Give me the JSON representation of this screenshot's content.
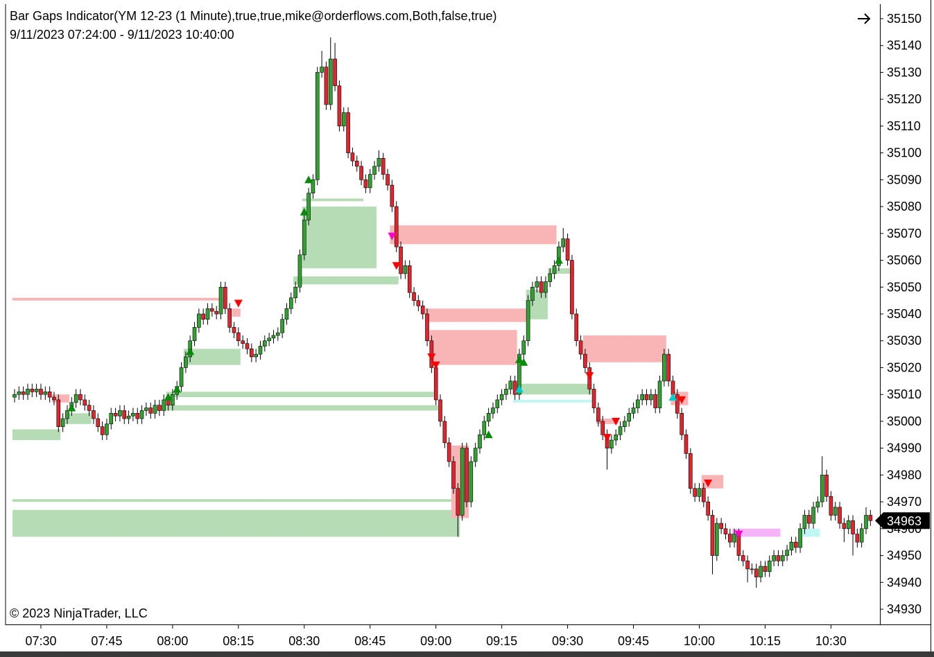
{
  "chart_data": {
    "type": "candlestick",
    "title": "Bar Gaps Indicator(YM 12-23 (1 Minute),true,true,mike@orderflows.com,Both,false,true)",
    "subtitle": "9/11/2023 07:24:00 - 9/11/2023 10:40:00",
    "copyright": "© 2023 NinjaTrader, LLC",
    "up_color": "#33a033",
    "down_color": "#e0252f",
    "ylim": [
      34925,
      35155
    ],
    "yticks": [
      34930,
      34940,
      34950,
      34960,
      34970,
      34980,
      34990,
      35000,
      35010,
      35020,
      35030,
      35040,
      35050,
      35060,
      35070,
      35080,
      35090,
      35100,
      35110,
      35120,
      35130,
      35140,
      35150
    ],
    "categories": [
      null,
      null,
      null,
      null,
      null,
      null,
      "07:30",
      null,
      null,
      null,
      null,
      null,
      null,
      null,
      null,
      null,
      null,
      null,
      null,
      null,
      null,
      "07:45",
      null,
      null,
      null,
      null,
      null,
      null,
      null,
      null,
      null,
      null,
      null,
      null,
      null,
      null,
      "08:00",
      null,
      null,
      null,
      null,
      null,
      null,
      null,
      null,
      null,
      null,
      null,
      null,
      null,
      null,
      "08:15",
      null,
      null,
      null,
      null,
      null,
      null,
      null,
      null,
      null,
      null,
      null,
      null,
      null,
      null,
      "08:30",
      null,
      null,
      null,
      null,
      null,
      null,
      null,
      null,
      null,
      null,
      null,
      null,
      null,
      null,
      "08:45",
      null,
      null,
      null,
      null,
      null,
      null,
      null,
      null,
      null,
      null,
      null,
      null,
      null,
      null,
      "09:00",
      null,
      null,
      null,
      null,
      null,
      null,
      null,
      null,
      null,
      null,
      null,
      null,
      null,
      null,
      "09:15",
      null,
      null,
      null,
      null,
      null,
      null,
      null,
      null,
      null,
      null,
      null,
      null,
      null,
      null,
      "09:30",
      null,
      null,
      null,
      null,
      null,
      null,
      null,
      null,
      null,
      null,
      null,
      null,
      null,
      null,
      "09:45",
      null,
      null,
      null,
      null,
      null,
      null,
      null,
      null,
      null,
      null,
      null,
      null,
      null,
      null,
      "10:00",
      null,
      null,
      null,
      null,
      null,
      null,
      null,
      null,
      null,
      null,
      null,
      null,
      null,
      null,
      "10:15",
      null,
      null,
      null,
      null,
      null,
      null,
      null,
      null,
      null,
      null,
      null,
      null,
      null,
      null,
      "10:30",
      null,
      null,
      null,
      null,
      null,
      null,
      null,
      null,
      null
    ],
    "open": [
      35009,
      35010,
      35011,
      35010,
      35012,
      35011,
      35012,
      35010,
      35011,
      35009,
      35008,
      34998,
      35001,
      35004,
      35007,
      35010,
      35008,
      35006,
      35004,
      35001,
      34998,
      34995,
      34999,
      35003,
      35002,
      35004,
      35001,
      35002,
      35003,
      35001,
      35004,
      35005,
      35003,
      35006,
      35004,
      35008,
      35006,
      35010,
      35013,
      35020,
      35024,
      35030,
      35035,
      35040,
      35038,
      35042,
      35041,
      35040,
      35050,
      35042,
      35035,
      35033,
      35030,
      35029,
      35027,
      35024,
      35025,
      35028,
      35030,
      35031,
      35032,
      35033,
      35038,
      35042,
      35046,
      35050,
      35062,
      35075,
      35085,
      35090,
      35130,
      35132,
      35118,
      35135,
      35125,
      35110,
      35115,
      35100,
      35097,
      35095,
      35090,
      35087,
      35092,
      35095,
      35098,
      35092,
      35088,
      35080,
      35065,
      35055,
      35058,
      35048,
      35045,
      35043,
      35040,
      35030,
      35020,
      35008,
      35000,
      34992,
      34985,
      34975,
      34965,
      34990,
      34970,
      34985,
      34990,
      34995,
      35000,
      35003,
      35005,
      35008,
      35010,
      35012,
      35015,
      35010,
      35025,
      35030,
      35045,
      35050,
      35052,
      35048,
      35052,
      35055,
      35058,
      35065,
      35068,
      35060,
      35040,
      35030,
      35025,
      35020,
      35012,
      35005,
      35000,
      34995,
      34990,
      34993,
      34995,
      34998,
      35000,
      35003,
      35005,
      35008,
      35010,
      35008,
      35010,
      35005,
      35015,
      35025,
      35015,
      35010,
      35003,
      34995,
      34988,
      34975,
      34972,
      34975,
      34970,
      34965,
      34950,
      34962,
      34960,
      34958,
      34955,
      34958,
      34950,
      34948,
      34945,
      34945,
      34942,
      34946,
      34944,
      34948,
      34950,
      34948,
      34950,
      34952,
      34955,
      34953,
      34960,
      34965,
      34962,
      34968,
      34970,
      34980,
      34972,
      34965,
      34968,
      34962,
      34960,
      34963,
      34958,
      34955,
      34960,
      34965
    ],
    "high": [
      35012,
      35013,
      35013,
      35014,
      35014,
      35014,
      35014,
      35013,
      35013,
      35011,
      35010,
      35003,
      35006,
      35009,
      35012,
      35012,
      35010,
      35008,
      35006,
      35003,
      35000,
      35001,
      35005,
      35005,
      35006,
      35006,
      35004,
      35005,
      35005,
      35006,
      35007,
      35007,
      35008,
      35008,
      35010,
      35010,
      35012,
      35015,
      35022,
      35026,
      35032,
      35037,
      35042,
      35042,
      35044,
      35044,
      35043,
      35052,
      35052,
      35044,
      35037,
      35035,
      35032,
      35031,
      35029,
      35027,
      35030,
      35032,
      35033,
      35034,
      35035,
      35040,
      35044,
      35048,
      35052,
      35064,
      35077,
      35087,
      35092,
      35132,
      35138,
      35134,
      35143,
      35141,
      35127,
      35117,
      35117,
      35102,
      35099,
      35097,
      35092,
      35094,
      35097,
      35101,
      35100,
      35094,
      35090,
      35082,
      35067,
      35060,
      35060,
      35050,
      35047,
      35045,
      35042,
      35032,
      35022,
      35010,
      35002,
      34994,
      34987,
      34977,
      34992,
      34992,
      34987,
      34992,
      34997,
      35002,
      35005,
      35007,
      35010,
      35012,
      35014,
      35017,
      35017,
      35027,
      35032,
      35047,
      35052,
      35054,
      35054,
      35054,
      35057,
      35060,
      35067,
      35072,
      35070,
      35062,
      35042,
      35032,
      35027,
      35022,
      35014,
      35007,
      35002,
      34997,
      34995,
      34997,
      35000,
      35002,
      35005,
      35007,
      35010,
      35012,
      35012,
      35012,
      35012,
      35017,
      35027,
      35027,
      35017,
      35012,
      35005,
      34997,
      34990,
      34977,
      34977,
      34977,
      34972,
      34967,
      34964,
      34964,
      34962,
      34960,
      34960,
      34960,
      34952,
      34950,
      34947,
      34947,
      34948,
      34948,
      34950,
      34952,
      34952,
      34952,
      34954,
      34957,
      34957,
      34962,
      34967,
      34967,
      34970,
      34972,
      34987,
      34982,
      34974,
      34970,
      34970,
      34964,
      34965,
      34965,
      34960,
      34962,
      34968,
      34967
    ],
    "low": [
      35007,
      35008,
      35008,
      35008,
      35009,
      35009,
      35008,
      35008,
      35007,
      35006,
      34996,
      34996,
      34999,
      35002,
      35005,
      35006,
      35004,
      35002,
      34999,
      34996,
      34993,
      34993,
      34997,
      35000,
      35000,
      34999,
      34999,
      35000,
      34999,
      34999,
      35002,
      35001,
      35001,
      35002,
      35002,
      35004,
      35004,
      35008,
      35011,
      35018,
      35022,
      35028,
      35033,
      35036,
      35036,
      35039,
      35038,
      35038,
      35040,
      35033,
      35031,
      35028,
      35027,
      35025,
      35022,
      35022,
      35023,
      35026,
      35028,
      35029,
      35030,
      35031,
      35036,
      35040,
      35044,
      35048,
      35060,
      35073,
      35083,
      35088,
      35128,
      35116,
      35116,
      35123,
      35108,
      35108,
      35098,
      35095,
      35093,
      35088,
      35085,
      35085,
      35090,
      35093,
      35090,
      35086,
      35078,
      35063,
      35053,
      35053,
      35046,
      35043,
      35041,
      35038,
      35028,
      35018,
      35006,
      34998,
      34990,
      34983,
      34973,
      34957,
      34963,
      34968,
      34968,
      34983,
      34988,
      34993,
      34998,
      35001,
      35003,
      35006,
      35008,
      35010,
      35008,
      35008,
      35023,
      35028,
      35043,
      35048,
      35046,
      35046,
      35050,
      35053,
      35056,
      35063,
      35058,
      35038,
      35028,
      35023,
      35018,
      35010,
      35003,
      34998,
      34993,
      34982,
      34988,
      34991,
      34993,
      34996,
      34998,
      35001,
      35003,
      35006,
      35006,
      35006,
      35003,
      35003,
      35013,
      35013,
      35008,
      35001,
      34993,
      34986,
      34973,
      34970,
      34970,
      34968,
      34963,
      34943,
      34948,
      34958,
      34956,
      34953,
      34953,
      34948,
      34946,
      34940,
      34943,
      34938,
      34940,
      34942,
      34942,
      34946,
      34946,
      34946,
      34948,
      34950,
      34951,
      34951,
      34958,
      34960,
      34960,
      34966,
      34968,
      34970,
      34963,
      34963,
      34960,
      34955,
      34958,
      34950,
      34953,
      34953,
      34958,
      34961
    ],
    "close": [
      35010,
      35011,
      35010,
      35012,
      35011,
      35012,
      35010,
      35011,
      35009,
      35008,
      34998,
      35001,
      35004,
      35007,
      35010,
      35008,
      35006,
      35004,
      35001,
      34998,
      34995,
      34999,
      35003,
      35002,
      35004,
      35001,
      35002,
      35003,
      35001,
      35004,
      35005,
      35003,
      35006,
      35004,
      35008,
      35006,
      35010,
      35013,
      35020,
      35024,
      35030,
      35035,
      35040,
      35038,
      35042,
      35041,
      35040,
      35050,
      35042,
      35035,
      35033,
      35030,
      35029,
      35027,
      35024,
      35025,
      35028,
      35030,
      35031,
      35032,
      35033,
      35038,
      35042,
      35046,
      35050,
      35062,
      35075,
      35085,
      35090,
      35130,
      35132,
      35118,
      35135,
      35125,
      35110,
      35115,
      35100,
      35097,
      35095,
      35090,
      35087,
      35092,
      35095,
      35098,
      35092,
      35088,
      35080,
      35065,
      35055,
      35058,
      35048,
      35045,
      35043,
      35040,
      35030,
      35020,
      35008,
      35000,
      34992,
      34985,
      34975,
      34965,
      34990,
      34970,
      34985,
      34990,
      34995,
      35000,
      35003,
      35005,
      35008,
      35010,
      35012,
      35015,
      35010,
      35025,
      35030,
      35045,
      35050,
      35052,
      35048,
      35052,
      35055,
      35058,
      35065,
      35068,
      35060,
      35040,
      35030,
      35025,
      35020,
      35012,
      35005,
      35000,
      34995,
      34990,
      34993,
      34995,
      34998,
      35000,
      35003,
      35005,
      35008,
      35010,
      35008,
      35010,
      35005,
      35015,
      35025,
      35015,
      35010,
      35003,
      34995,
      34988,
      34975,
      34972,
      34975,
      34970,
      34965,
      34950,
      34962,
      34960,
      34958,
      34955,
      34958,
      34950,
      34948,
      34945,
      34945,
      34942,
      34946,
      34944,
      34948,
      34950,
      34948,
      34950,
      34952,
      34955,
      34953,
      34960,
      34965,
      34962,
      34968,
      34970,
      34980,
      34972,
      34965,
      34968,
      34962,
      34960,
      34963,
      34958,
      34955,
      34960,
      34965,
      34963
    ],
    "zones": [
      {
        "start": 0,
        "end": 47,
        "top": 35046,
        "bottom": 35045,
        "color": "#f9b5b5"
      },
      {
        "start": 0,
        "end": 10,
        "top": 34997,
        "bottom": 34993,
        "color": "#b5dcb5"
      },
      {
        "start": 9,
        "end": 12,
        "top": 35010,
        "bottom": 35007,
        "color": "#f9b5b5"
      },
      {
        "start": 12,
        "end": 17,
        "top": 35003,
        "bottom": 34999,
        "color": "#b5dcb5"
      },
      {
        "start": 39,
        "end": 51,
        "top": 35027,
        "bottom": 35021,
        "color": "#b5dcb5"
      },
      {
        "start": 35,
        "end": 95,
        "top": 35011,
        "bottom": 35009,
        "color": "#b5dcb5"
      },
      {
        "start": 33,
        "end": 96,
        "top": 35006,
        "bottom": 35004,
        "color": "#b5dcb5"
      },
      {
        "start": 0,
        "end": 100,
        "top": 34971,
        "bottom": 34970,
        "color": "#b5dcb5"
      },
      {
        "start": 0,
        "end": 101,
        "top": 34967,
        "bottom": 34957,
        "color": "#b5dcb5"
      },
      {
        "start": 50,
        "end": 51,
        "top": 35042,
        "bottom": 35039,
        "color": "#f9b5b5"
      },
      {
        "start": 66,
        "end": 79,
        "top": 35083,
        "bottom": 35082,
        "color": "#b5dcb5"
      },
      {
        "start": 66,
        "end": 82,
        "top": 35080,
        "bottom": 35057,
        "color": "#b5dcb5"
      },
      {
        "start": 64,
        "end": 87,
        "top": 35054,
        "bottom": 35051,
        "color": "#b5dcb5"
      },
      {
        "start": 86,
        "end": 123,
        "top": 35073,
        "bottom": 35066,
        "color": "#f9b5b5"
      },
      {
        "start": 94,
        "end": 117,
        "top": 35042,
        "bottom": 35037,
        "color": "#f9b5b5"
      },
      {
        "start": 95,
        "end": 114,
        "top": 35034,
        "bottom": 35021,
        "color": "#f9b5b5"
      },
      {
        "start": 100,
        "end": 103,
        "top": 34991,
        "bottom": 34964,
        "color": "#f9b5b5"
      },
      {
        "start": 114,
        "end": 131,
        "top": 35014,
        "bottom": 35010,
        "color": "#b5dcb5"
      },
      {
        "start": 114,
        "end": 131,
        "top": 35008,
        "bottom": 35007,
        "color": "#bff7f5"
      },
      {
        "start": 117,
        "end": 121,
        "top": 35049,
        "bottom": 35038,
        "color": "#b5dcb5"
      },
      {
        "start": 122,
        "end": 127,
        "top": 35057,
        "bottom": 35055,
        "color": "#b5dcb5"
      },
      {
        "start": 130,
        "end": 148,
        "top": 35032,
        "bottom": 35022,
        "color": "#f9b5b5"
      },
      {
        "start": 150,
        "end": 153,
        "top": 35011,
        "bottom": 35006,
        "color": "#f9b5b5"
      },
      {
        "start": 157,
        "end": 161,
        "top": 34980,
        "bottom": 34975,
        "color": "#f9b5b5"
      },
      {
        "start": 133,
        "end": 137,
        "top": 35001,
        "bottom": 34999,
        "color": "#f9b5b5"
      },
      {
        "start": 164,
        "end": 174,
        "top": 34960,
        "bottom": 34957,
        "color": "#f7b3f7"
      },
      {
        "start": 180,
        "end": 183,
        "top": 34960,
        "bottom": 34957,
        "color": "#bff7f5"
      }
    ],
    "signals": [
      {
        "index": 13,
        "value": 35005,
        "shape": "up",
        "color": "#0a8a0a"
      },
      {
        "index": 40,
        "value": 35026,
        "shape": "up",
        "color": "#0a8a0a"
      },
      {
        "index": 35,
        "value": 35009,
        "shape": "up",
        "color": "#0a8a0a"
      },
      {
        "index": 37,
        "value": 35012,
        "shape": "up",
        "color": "#0a8a0a"
      },
      {
        "index": 67,
        "value": 35090,
        "shape": "up",
        "color": "#0a8a0a"
      },
      {
        "index": 66,
        "value": 35078,
        "shape": "up",
        "color": "#0a8a0a"
      },
      {
        "index": 108,
        "value": 34995,
        "shape": "up",
        "color": "#0a8a0a"
      },
      {
        "index": 115,
        "value": 35023,
        "shape": "up",
        "color": "#0a8a0a"
      },
      {
        "index": 116,
        "value": 35022,
        "shape": "up",
        "color": "#0a8a0a"
      },
      {
        "index": 124,
        "value": 35060,
        "shape": "up",
        "color": "#0a8a0a"
      },
      {
        "index": 51,
        "value": 35044,
        "shape": "down",
        "color": "#ff0000"
      },
      {
        "index": 87,
        "value": 35058,
        "shape": "down",
        "color": "#ff0000"
      },
      {
        "index": 95,
        "value": 35024,
        "shape": "down",
        "color": "#ff0000"
      },
      {
        "index": 96,
        "value": 35021,
        "shape": "down",
        "color": "#ff0000"
      },
      {
        "index": 131,
        "value": 35017,
        "shape": "down",
        "color": "#ff0000"
      },
      {
        "index": 137,
        "value": 35000,
        "shape": "down",
        "color": "#ff0000"
      },
      {
        "index": 135,
        "value": 34994,
        "shape": "down",
        "color": "#ff0000"
      },
      {
        "index": 152,
        "value": 35008,
        "shape": "down",
        "color": "#ff0000"
      },
      {
        "index": 158,
        "value": 34977,
        "shape": "down",
        "color": "#ff0000"
      },
      {
        "index": 86,
        "value": 35069,
        "shape": "down",
        "color": "#ff00cc"
      },
      {
        "index": 165,
        "value": 34958,
        "shape": "down",
        "color": "#ff00cc"
      },
      {
        "index": 115,
        "value": 35012,
        "shape": "up",
        "color": "#00cccc"
      },
      {
        "index": 150,
        "value": 35009,
        "shape": "up",
        "color": "#00cccc"
      }
    ]
  }
}
